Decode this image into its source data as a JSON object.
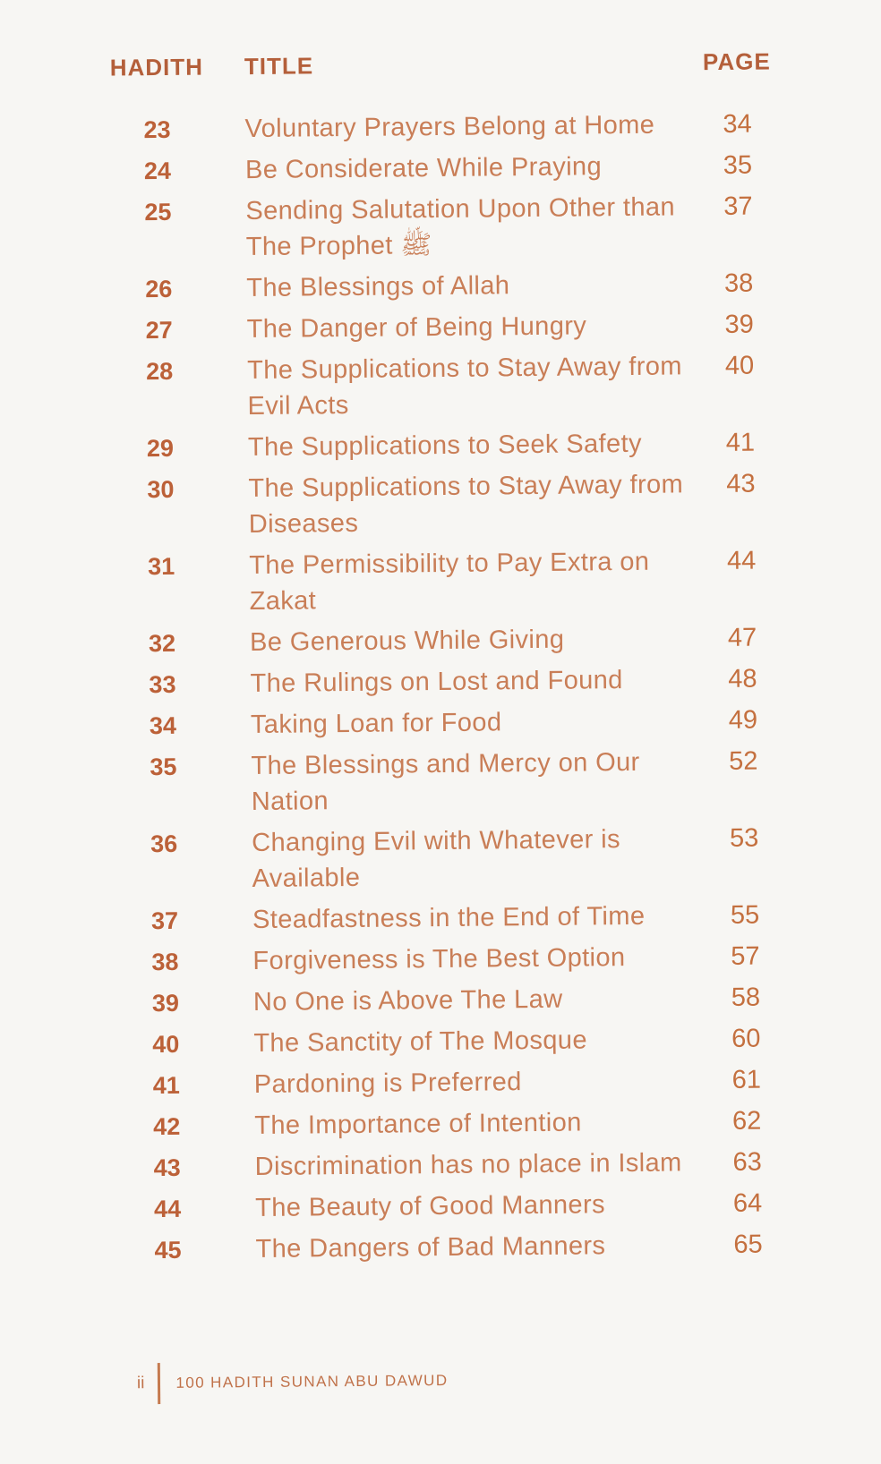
{
  "colors": {
    "bg": "#f7f6f3",
    "heading": "#b45f3a",
    "number": "#bc6138",
    "title": "#c97e57",
    "pagenum": "#c4703f",
    "footer": "#c0724a",
    "bar": "#c57a4f"
  },
  "header": {
    "hadith": "HADITH",
    "title": "TITLE",
    "page": "PAGE"
  },
  "entries": [
    {
      "num": "23",
      "lines": [
        "Voluntary Prayers Belong at Home"
      ],
      "page": "34"
    },
    {
      "num": "24",
      "lines": [
        "Be Considerate While Praying"
      ],
      "page": "35"
    },
    {
      "num": "25",
      "lines": [
        "Sending Salutation Upon Other than",
        "The Prophet ﷺ"
      ],
      "page": "37"
    },
    {
      "num": "26",
      "lines": [
        "The Blessings of Allah"
      ],
      "page": "38"
    },
    {
      "num": "27",
      "lines": [
        "The Danger of Being Hungry"
      ],
      "page": "39"
    },
    {
      "num": "28",
      "lines": [
        "The Supplications to Stay Away from",
        "Evil Acts"
      ],
      "page": "40"
    },
    {
      "num": "29",
      "lines": [
        "The Supplications to Seek Safety"
      ],
      "page": "41"
    },
    {
      "num": "30",
      "lines": [
        "The Supplications to Stay Away from",
        "Diseases"
      ],
      "page": "43"
    },
    {
      "num": "31",
      "lines": [
        "The Permissibility to Pay Extra on",
        "Zakat"
      ],
      "page": "44"
    },
    {
      "num": "32",
      "lines": [
        "Be Generous While Giving"
      ],
      "page": "47"
    },
    {
      "num": "33",
      "lines": [
        "The Rulings on Lost and Found"
      ],
      "page": "48"
    },
    {
      "num": "34",
      "lines": [
        "Taking Loan for Food"
      ],
      "page": "49"
    },
    {
      "num": "35",
      "lines": [
        "The Blessings and Mercy on Our",
        "Nation"
      ],
      "page": "52"
    },
    {
      "num": "36",
      "lines": [
        "Changing Evil with Whatever is",
        "Available"
      ],
      "page": "53"
    },
    {
      "num": "37",
      "lines": [
        "Steadfastness in the End of Time"
      ],
      "page": "55"
    },
    {
      "num": "38",
      "lines": [
        "Forgiveness is The Best Option"
      ],
      "page": "57"
    },
    {
      "num": "39",
      "lines": [
        "No One is Above The Law"
      ],
      "page": "58"
    },
    {
      "num": "40",
      "lines": [
        "The Sanctity of The Mosque"
      ],
      "page": "60"
    },
    {
      "num": "41",
      "lines": [
        "Pardoning is Preferred"
      ],
      "page": "61"
    },
    {
      "num": "42",
      "lines": [
        "The Importance of Intention"
      ],
      "page": "62"
    },
    {
      "num": "43",
      "lines": [
        "Discrimination has no place in Islam"
      ],
      "page": "63"
    },
    {
      "num": "44",
      "lines": [
        "The Beauty of Good Manners"
      ],
      "page": "64"
    },
    {
      "num": "45",
      "lines": [
        "The Dangers of Bad Manners"
      ],
      "page": "65"
    }
  ],
  "footer": {
    "page_number": "ii",
    "book_title": "100 HADITH SUNAN ABU DAWUD"
  }
}
